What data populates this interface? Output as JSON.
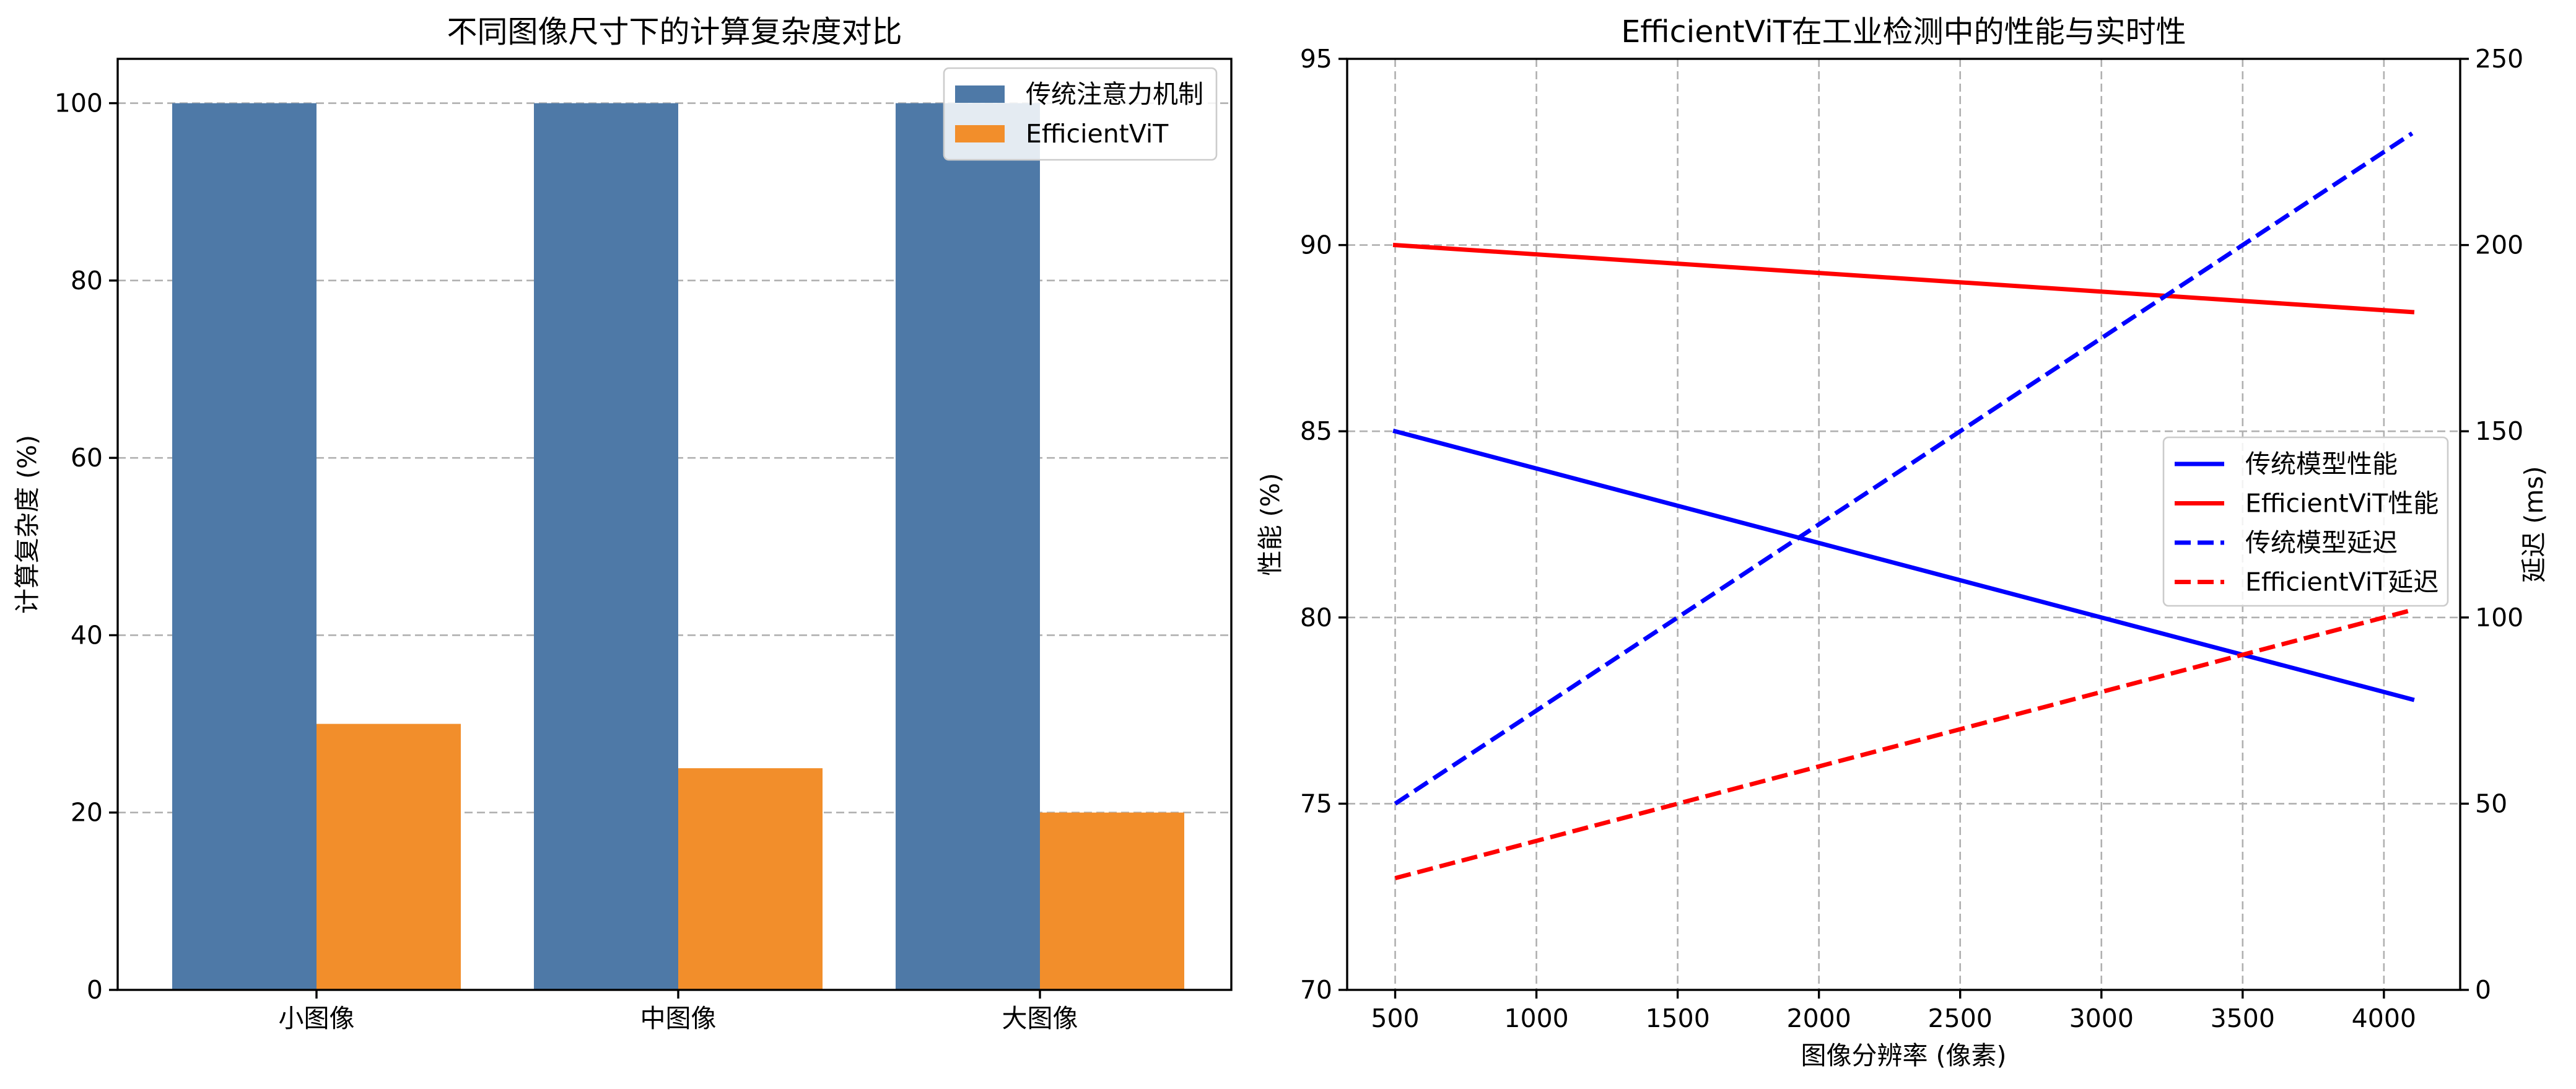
{
  "chart_data": [
    {
      "type": "bar",
      "title": "不同图像尺寸下的计算复杂度对比",
      "xlabel": "",
      "ylabel": "计算复杂度 (%)",
      "categories": [
        "小图像",
        "中图像",
        "大图像"
      ],
      "series": [
        {
          "name": "传统注意力机制",
          "values": [
            100,
            100,
            100
          ],
          "color": "#4e79a7"
        },
        {
          "name": "EfficientViT",
          "values": [
            30,
            25,
            20
          ],
          "color": "#f28e2b"
        }
      ],
      "ylim": [
        0,
        105
      ],
      "yticks": [
        0,
        20,
        40,
        60,
        80,
        100
      ],
      "grid": "y",
      "legend_position": "top-right"
    },
    {
      "type": "line",
      "title": "EfficientViT在工业检测中的性能与实时性",
      "xlabel": "图像分辨率 (像素)",
      "ylabel": "性能 (%)",
      "y2label": "延迟 (ms)",
      "x": [
        500,
        4100
      ],
      "xlim": [
        330,
        4270
      ],
      "xticks": [
        500,
        1000,
        1500,
        2000,
        2500,
        3000,
        3500,
        4000
      ],
      "ylim": [
        70,
        95
      ],
      "yticks": [
        70,
        75,
        80,
        85,
        90,
        95
      ],
      "y2lim": [
        0,
        250
      ],
      "y2ticks": [
        0,
        50,
        100,
        150,
        200,
        250
      ],
      "grid": "both",
      "legend_position": "center-right",
      "series": [
        {
          "name": "传统模型性能",
          "axis": "left",
          "style": "solid",
          "color": "#0000ff",
          "values": [
            85,
            77.8
          ]
        },
        {
          "name": "EfficientViT性能",
          "axis": "left",
          "style": "solid",
          "color": "#ff0000",
          "values": [
            90,
            88.2
          ]
        },
        {
          "name": "传统模型延迟",
          "axis": "right",
          "style": "dashed",
          "color": "#0000ff",
          "values": [
            50,
            230
          ]
        },
        {
          "name": "EfficientViT延迟",
          "axis": "right",
          "style": "dashed",
          "color": "#ff0000",
          "values": [
            30,
            102
          ]
        }
      ]
    }
  ]
}
